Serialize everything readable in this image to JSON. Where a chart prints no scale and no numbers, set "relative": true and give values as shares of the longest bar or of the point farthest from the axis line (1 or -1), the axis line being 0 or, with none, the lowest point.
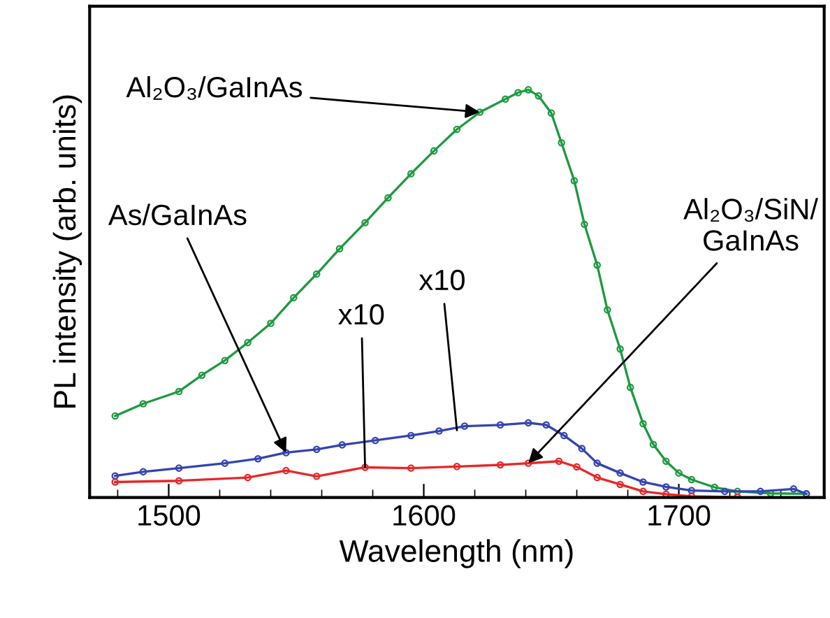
{
  "chart_data": {
    "type": "line",
    "relative": true,
    "xlabel": "Wavelength (nm)",
    "ylabel": "PL intensity (arb. units)",
    "marker": "circle",
    "line_style": "solid",
    "grid": false,
    "legend": false,
    "xlim": [
      1469,
      1757
    ],
    "xticks": [
      {
        "value": 1480,
        "label": null
      },
      1500,
      {
        "value": 1520,
        "label": null
      },
      {
        "value": 1540,
        "label": null
      },
      {
        "value": 1560,
        "label": null
      },
      {
        "value": 1580,
        "label": null
      },
      1600,
      {
        "value": 1620,
        "label": null
      },
      {
        "value": 1640,
        "label": null
      },
      {
        "value": 1660,
        "label": null
      },
      {
        "value": 1680,
        "label": null
      },
      1700,
      {
        "value": 1720,
        "label": null
      },
      {
        "value": 1740,
        "label": null
      }
    ],
    "series": [
      {
        "name": "Al₂O₃/GaInAs",
        "color": "#1e9a40",
        "x": [
          1479,
          1490,
          1504,
          1513,
          1522,
          1531,
          1540,
          1549,
          1558,
          1567,
          1577,
          1586,
          1595,
          1604,
          1613,
          1622,
          1632,
          1637,
          1641,
          1645,
          1650,
          1654,
          1659,
          1663,
          1668,
          1672,
          1677,
          1681,
          1686,
          1690,
          1695,
          1700,
          1705,
          1714,
          1723,
          1736,
          1750
        ],
        "values": [
          0.2,
          0.23,
          0.26,
          0.3,
          0.336,
          0.38,
          0.427,
          0.49,
          0.548,
          0.61,
          0.674,
          0.735,
          0.794,
          0.85,
          0.903,
          0.945,
          0.977,
          0.993,
          1.0,
          0.985,
          0.943,
          0.87,
          0.777,
          0.67,
          0.57,
          0.46,
          0.364,
          0.27,
          0.181,
          0.13,
          0.089,
          0.06,
          0.044,
          0.025,
          0.015,
          0.01,
          0.009
        ]
      },
      {
        "name": "As/GaInAs",
        "color": "#3444b0",
        "x": [
          1479,
          1490,
          1504,
          1522,
          1535,
          1546,
          1558,
          1568,
          1581,
          1595,
          1606,
          1616,
          1630,
          1641,
          1648,
          1655,
          1662,
          1668,
          1677,
          1686,
          1695,
          1705,
          1718,
          1732,
          1745,
          1750
        ],
        "values": [
          0.053,
          0.063,
          0.072,
          0.084,
          0.095,
          0.11,
          0.118,
          0.129,
          0.14,
          0.152,
          0.163,
          0.175,
          0.178,
          0.183,
          0.178,
          0.152,
          0.12,
          0.084,
          0.06,
          0.038,
          0.026,
          0.017,
          0.015,
          0.015,
          0.021,
          0.009
        ]
      },
      {
        "name": "Al₂O₃/SiN/\nGaInAs",
        "color": "#e62828",
        "x": [
          1479,
          1504,
          1531,
          1546,
          1558,
          1577,
          1595,
          1613,
          1630,
          1641,
          1653,
          1660,
          1668,
          1677,
          1686,
          1695,
          1705,
          1723
        ],
        "values": [
          0.038,
          0.041,
          0.049,
          0.066,
          0.052,
          0.074,
          0.072,
          0.076,
          0.08,
          0.084,
          0.089,
          0.075,
          0.049,
          0.032,
          0.015,
          0.008,
          0.003,
          0.001
        ]
      }
    ],
    "annotations": [
      {
        "text": "x10",
        "x": 1577,
        "y": 0.074
      },
      {
        "text": "x10",
        "x": 1613,
        "y": 0.165
      }
    ]
  }
}
